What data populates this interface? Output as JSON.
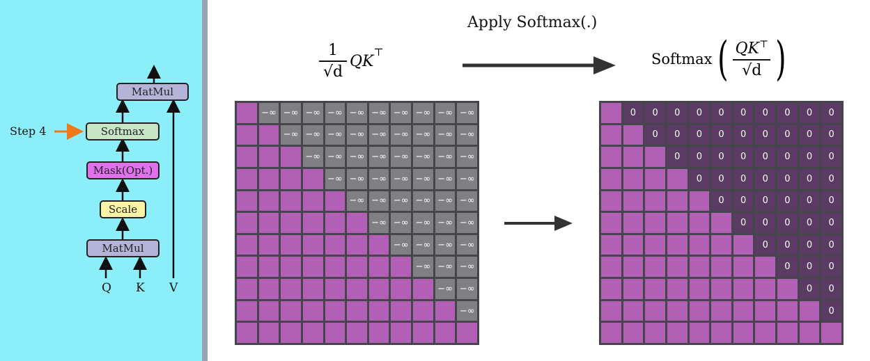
{
  "flow": {
    "blocks": {
      "matmul_top": "MatMul",
      "softmax": "Softmax",
      "mask": "Mask(Opt.)",
      "scale": "Scale",
      "matmul_bottom": "MatMul"
    },
    "inputs": {
      "q": "Q",
      "k": "K",
      "v": "V"
    },
    "step_label": "Step 4",
    "colors": {
      "matmul": "#b4b4d8",
      "softmax": "#c6e6c6",
      "mask": "#e070ec",
      "scale": "#fbf3a5",
      "step_arrow": "#f07818"
    }
  },
  "equations": {
    "left": {
      "num": "1",
      "sqrt": "√d",
      "expr": "QK",
      "sup": "⊤"
    },
    "right": {
      "func": "Softmax",
      "num": "QK",
      "sup": "⊤",
      "den": "√d"
    },
    "arrow_label": "Apply Softmax(.)"
  },
  "matrices": {
    "size": 11,
    "left_masked_symbol": "−∞",
    "right_masked_symbol": "0",
    "colors": {
      "unmasked": "#b25fb6",
      "masked_left": "#7f7f84",
      "masked_right": "#5b3b63",
      "grid": "#45464c"
    }
  }
}
